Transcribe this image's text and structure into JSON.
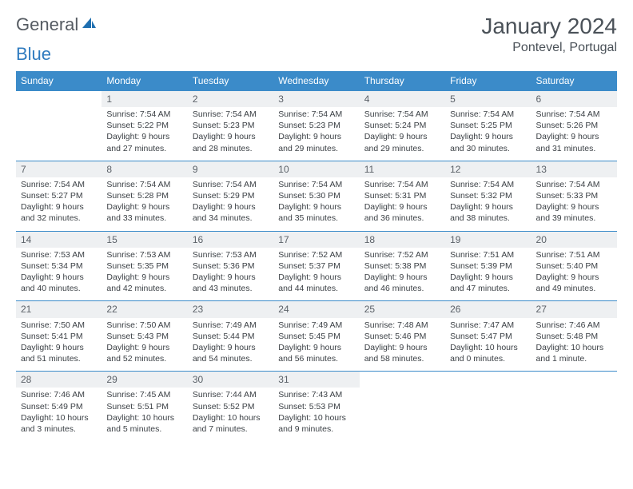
{
  "brand": {
    "word1": "General",
    "word2": "Blue"
  },
  "title": {
    "month": "January 2024",
    "location": "Pontevel, Portugal"
  },
  "colors": {
    "header_bg": "#3b8bc9",
    "header_text": "#ffffff",
    "daynum_bg": "#eef0f2",
    "rule": "#3b8bc9",
    "body_text": "#3a3f44",
    "title_text": "#4a5158",
    "logo_gray": "#555b62",
    "logo_blue": "#2f7bbf"
  },
  "weekdays": [
    "Sunday",
    "Monday",
    "Tuesday",
    "Wednesday",
    "Thursday",
    "Friday",
    "Saturday"
  ],
  "start_offset": 1,
  "days": [
    {
      "n": 1,
      "sr": "7:54 AM",
      "ss": "5:22 PM",
      "dl": "9 hours and 27 minutes."
    },
    {
      "n": 2,
      "sr": "7:54 AM",
      "ss": "5:23 PM",
      "dl": "9 hours and 28 minutes."
    },
    {
      "n": 3,
      "sr": "7:54 AM",
      "ss": "5:23 PM",
      "dl": "9 hours and 29 minutes."
    },
    {
      "n": 4,
      "sr": "7:54 AM",
      "ss": "5:24 PM",
      "dl": "9 hours and 29 minutes."
    },
    {
      "n": 5,
      "sr": "7:54 AM",
      "ss": "5:25 PM",
      "dl": "9 hours and 30 minutes."
    },
    {
      "n": 6,
      "sr": "7:54 AM",
      "ss": "5:26 PM",
      "dl": "9 hours and 31 minutes."
    },
    {
      "n": 7,
      "sr": "7:54 AM",
      "ss": "5:27 PM",
      "dl": "9 hours and 32 minutes."
    },
    {
      "n": 8,
      "sr": "7:54 AM",
      "ss": "5:28 PM",
      "dl": "9 hours and 33 minutes."
    },
    {
      "n": 9,
      "sr": "7:54 AM",
      "ss": "5:29 PM",
      "dl": "9 hours and 34 minutes."
    },
    {
      "n": 10,
      "sr": "7:54 AM",
      "ss": "5:30 PM",
      "dl": "9 hours and 35 minutes."
    },
    {
      "n": 11,
      "sr": "7:54 AM",
      "ss": "5:31 PM",
      "dl": "9 hours and 36 minutes."
    },
    {
      "n": 12,
      "sr": "7:54 AM",
      "ss": "5:32 PM",
      "dl": "9 hours and 38 minutes."
    },
    {
      "n": 13,
      "sr": "7:54 AM",
      "ss": "5:33 PM",
      "dl": "9 hours and 39 minutes."
    },
    {
      "n": 14,
      "sr": "7:53 AM",
      "ss": "5:34 PM",
      "dl": "9 hours and 40 minutes."
    },
    {
      "n": 15,
      "sr": "7:53 AM",
      "ss": "5:35 PM",
      "dl": "9 hours and 42 minutes."
    },
    {
      "n": 16,
      "sr": "7:53 AM",
      "ss": "5:36 PM",
      "dl": "9 hours and 43 minutes."
    },
    {
      "n": 17,
      "sr": "7:52 AM",
      "ss": "5:37 PM",
      "dl": "9 hours and 44 minutes."
    },
    {
      "n": 18,
      "sr": "7:52 AM",
      "ss": "5:38 PM",
      "dl": "9 hours and 46 minutes."
    },
    {
      "n": 19,
      "sr": "7:51 AM",
      "ss": "5:39 PM",
      "dl": "9 hours and 47 minutes."
    },
    {
      "n": 20,
      "sr": "7:51 AM",
      "ss": "5:40 PM",
      "dl": "9 hours and 49 minutes."
    },
    {
      "n": 21,
      "sr": "7:50 AM",
      "ss": "5:41 PM",
      "dl": "9 hours and 51 minutes."
    },
    {
      "n": 22,
      "sr": "7:50 AM",
      "ss": "5:43 PM",
      "dl": "9 hours and 52 minutes."
    },
    {
      "n": 23,
      "sr": "7:49 AM",
      "ss": "5:44 PM",
      "dl": "9 hours and 54 minutes."
    },
    {
      "n": 24,
      "sr": "7:49 AM",
      "ss": "5:45 PM",
      "dl": "9 hours and 56 minutes."
    },
    {
      "n": 25,
      "sr": "7:48 AM",
      "ss": "5:46 PM",
      "dl": "9 hours and 58 minutes."
    },
    {
      "n": 26,
      "sr": "7:47 AM",
      "ss": "5:47 PM",
      "dl": "10 hours and 0 minutes."
    },
    {
      "n": 27,
      "sr": "7:46 AM",
      "ss": "5:48 PM",
      "dl": "10 hours and 1 minute."
    },
    {
      "n": 28,
      "sr": "7:46 AM",
      "ss": "5:49 PM",
      "dl": "10 hours and 3 minutes."
    },
    {
      "n": 29,
      "sr": "7:45 AM",
      "ss": "5:51 PM",
      "dl": "10 hours and 5 minutes."
    },
    {
      "n": 30,
      "sr": "7:44 AM",
      "ss": "5:52 PM",
      "dl": "10 hours and 7 minutes."
    },
    {
      "n": 31,
      "sr": "7:43 AM",
      "ss": "5:53 PM",
      "dl": "10 hours and 9 minutes."
    }
  ],
  "labels": {
    "sunrise": "Sunrise: ",
    "sunset": "Sunset: ",
    "daylight": "Daylight: "
  }
}
